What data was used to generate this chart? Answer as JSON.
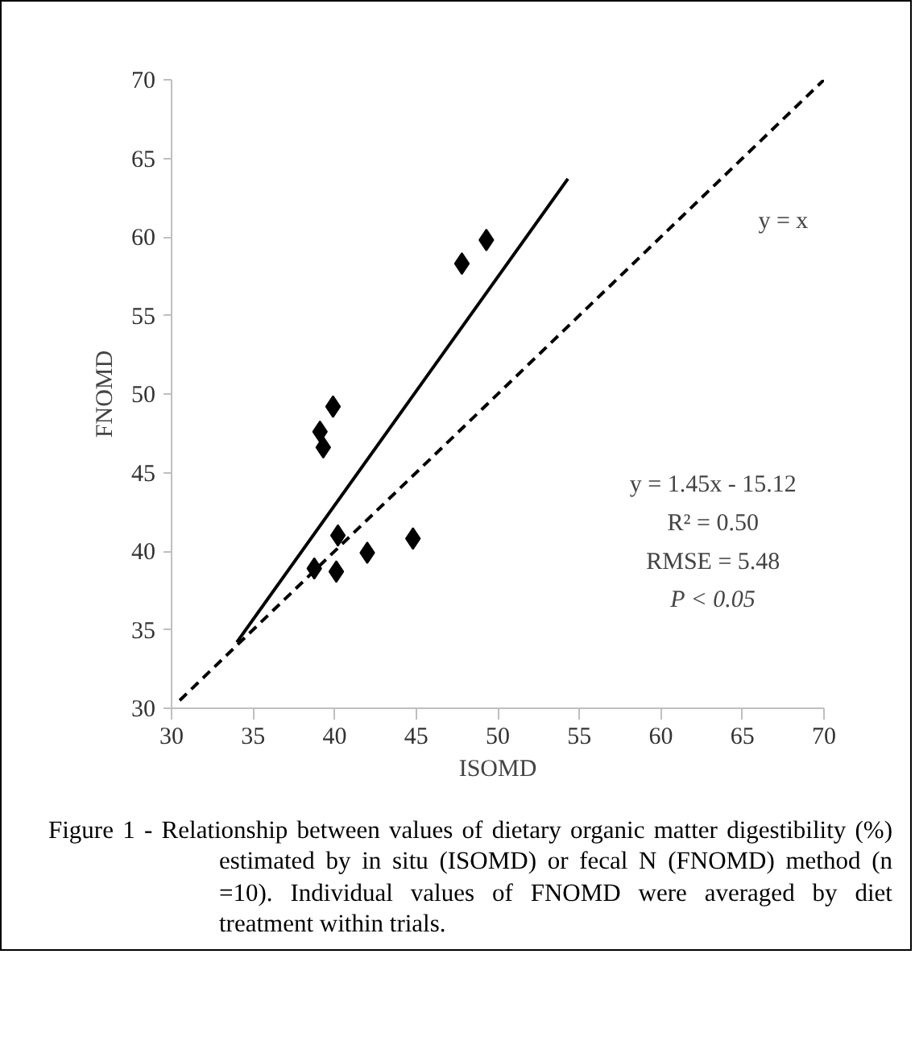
{
  "chart_data": {
    "type": "scatter",
    "xlabel": "ISOMD",
    "ylabel": "FNOMD",
    "xlim": [
      30,
      70
    ],
    "ylim": [
      30,
      70
    ],
    "xticks": [
      30,
      35,
      40,
      45,
      50,
      55,
      60,
      65,
      70
    ],
    "yticks": [
      30,
      35,
      40,
      45,
      50,
      55,
      60,
      65,
      70
    ],
    "grid": false,
    "series": [
      {
        "color": "#000000",
        "marker": "diamond",
        "x": [
          47.8,
          49.3,
          39.9,
          39.1,
          39.3,
          40.2,
          38.75,
          40.1,
          42.0,
          44.8
        ],
        "values": [
          58.3,
          59.8,
          49.2,
          47.6,
          46.6,
          41.0,
          38.9,
          38.7,
          39.9,
          40.8
        ]
      },
      {
        "type": "line",
        "color": "#000000",
        "line_style": "solid",
        "marker": "none",
        "x": [
          34.0,
          54.3
        ],
        "values": [
          34.2,
          63.7
        ]
      },
      {
        "type": "line",
        "color": "#000000",
        "line_style": "dashed",
        "marker": "none",
        "x": [
          30.5,
          70
        ],
        "values": [
          30.5,
          70
        ]
      }
    ],
    "annotations": [
      "y = x",
      "y = 1.45x - 15.12",
      "R² = 0.50",
      "RMSE = 5.48",
      "P < 0.05",
      "Figure 1 - Relationship between values of dietary organic matter digestibility (%) estimated by in situ (ISOMD) or fecal N (FNOMD) method (n =10). Individual values of FNOMD were averaged by diet treatment within trials."
    ]
  }
}
